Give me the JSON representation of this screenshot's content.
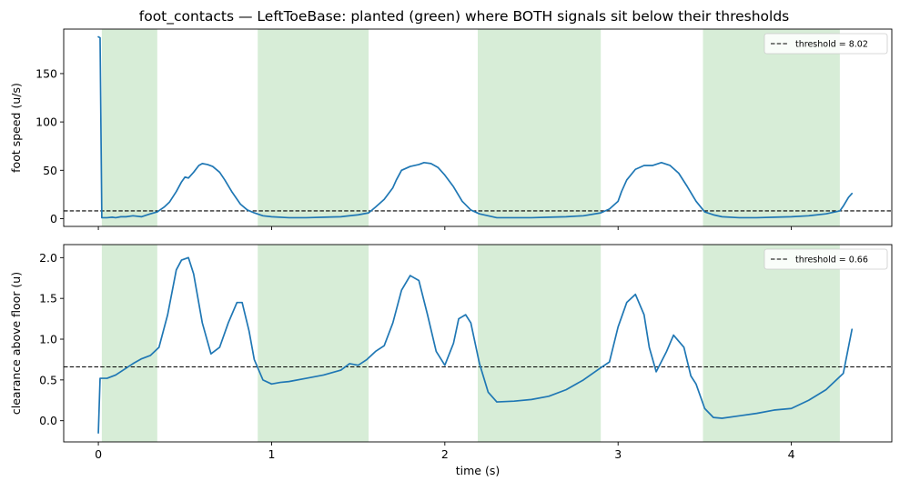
{
  "figure": {
    "title": "foot_contacts — LeftToeBase: planted (green) where BOTH signals sit below their thresholds"
  },
  "colors": {
    "line": "#1f77b4",
    "threshold": "#000000",
    "planted_fill": "#2ca02c",
    "axes": "#000000"
  },
  "chart_data": [
    {
      "type": "line",
      "name": "speed",
      "title": "foot_contacts — LeftToeBase: planted (green) where BOTH signals sit below their thresholds",
      "xlabel": "",
      "ylabel": "foot speed (u/s)",
      "xlim": [
        -0.2,
        4.58
      ],
      "ylim": [
        -8,
        196
      ],
      "xticks": [
        0,
        1,
        2,
        3,
        4
      ],
      "xtick_labels_visible": false,
      "yticks": [
        0,
        50,
        100,
        150
      ],
      "grid": false,
      "threshold": 8.02,
      "legend": {
        "label": "threshold = 8.02",
        "position": "upper right"
      },
      "planted_intervals": [
        [
          0.02,
          0.34
        ],
        [
          0.92,
          1.56
        ],
        [
          2.19,
          2.9
        ],
        [
          3.49,
          4.28
        ]
      ],
      "series": [
        {
          "x": [
            0.0,
            0.01,
            0.02,
            0.05,
            0.08,
            0.1,
            0.13,
            0.16,
            0.2,
            0.25,
            0.3,
            0.34,
            0.38,
            0.41,
            0.45,
            0.48,
            0.5,
            0.52,
            0.55,
            0.58,
            0.6,
            0.63,
            0.66,
            0.7,
            0.73,
            0.77,
            0.82,
            0.86,
            0.9,
            0.95,
            1.0,
            1.1,
            1.2,
            1.3,
            1.4,
            1.5,
            1.56,
            1.6,
            1.65,
            1.7,
            1.72,
            1.75,
            1.8,
            1.85,
            1.88,
            1.92,
            1.96,
            2.0,
            2.05,
            2.1,
            2.15,
            2.2,
            2.25,
            2.3,
            2.4,
            2.5,
            2.6,
            2.7,
            2.8,
            2.9,
            2.95,
            3.0,
            3.02,
            3.05,
            3.1,
            3.15,
            3.2,
            3.25,
            3.3,
            3.35,
            3.4,
            3.45,
            3.5,
            3.55,
            3.6,
            3.7,
            3.8,
            3.9,
            4.0,
            4.1,
            4.2,
            4.28,
            4.3,
            4.33,
            4.35
          ],
          "y": [
            188,
            187,
            1,
            1,
            1.5,
            1,
            2,
            2,
            3,
            2,
            5,
            7,
            12,
            17,
            28,
            38,
            43,
            42,
            48,
            55,
            57,
            56,
            54,
            48,
            40,
            28,
            15,
            9,
            6,
            3,
            2,
            1,
            1,
            1.5,
            2,
            4,
            6,
            12,
            20,
            32,
            40,
            50,
            54,
            56,
            58,
            57,
            53,
            45,
            33,
            18,
            9,
            5,
            3,
            1,
            1,
            1,
            1.5,
            2,
            3,
            6,
            10,
            18,
            28,
            40,
            51,
            55,
            55,
            58,
            55,
            47,
            33,
            18,
            7,
            4,
            2,
            1,
            1,
            1.5,
            2,
            3,
            5,
            8,
            13,
            22,
            26
          ]
        }
      ]
    },
    {
      "type": "line",
      "name": "clearance",
      "xlabel": "time (s)",
      "ylabel": "clearance above floor (u)",
      "xlim": [
        -0.2,
        4.58
      ],
      "ylim": [
        -0.26,
        2.16
      ],
      "xticks": [
        0,
        1,
        2,
        3,
        4
      ],
      "yticks": [
        0.0,
        0.5,
        1.0,
        1.5,
        2.0
      ],
      "grid": false,
      "threshold": 0.66,
      "legend": {
        "label": "threshold = 0.66",
        "position": "upper right"
      },
      "planted_intervals": [
        [
          0.02,
          0.34
        ],
        [
          0.92,
          1.56
        ],
        [
          2.19,
          2.9
        ],
        [
          3.49,
          4.28
        ]
      ],
      "series": [
        {
          "x": [
            0.0,
            0.01,
            0.05,
            0.1,
            0.15,
            0.2,
            0.25,
            0.3,
            0.35,
            0.4,
            0.45,
            0.48,
            0.52,
            0.55,
            0.6,
            0.65,
            0.7,
            0.75,
            0.8,
            0.83,
            0.87,
            0.9,
            0.95,
            1.0,
            1.05,
            1.1,
            1.2,
            1.3,
            1.4,
            1.45,
            1.5,
            1.55,
            1.6,
            1.65,
            1.7,
            1.75,
            1.8,
            1.85,
            1.9,
            1.95,
            2.0,
            2.05,
            2.08,
            2.12,
            2.15,
            2.2,
            2.25,
            2.3,
            2.4,
            2.5,
            2.6,
            2.7,
            2.8,
            2.9,
            2.95,
            3.0,
            3.05,
            3.1,
            3.15,
            3.18,
            3.22,
            3.28,
            3.32,
            3.38,
            3.42,
            3.45,
            3.5,
            3.55,
            3.6,
            3.7,
            3.8,
            3.9,
            4.0,
            4.1,
            4.2,
            4.25,
            4.3,
            4.35
          ],
          "y": [
            -0.15,
            0.52,
            0.52,
            0.56,
            0.63,
            0.7,
            0.76,
            0.8,
            0.9,
            1.3,
            1.85,
            1.97,
            2.0,
            1.8,
            1.2,
            0.82,
            0.9,
            1.2,
            1.45,
            1.45,
            1.1,
            0.75,
            0.5,
            0.45,
            0.47,
            0.48,
            0.52,
            0.56,
            0.62,
            0.7,
            0.68,
            0.75,
            0.85,
            0.92,
            1.2,
            1.6,
            1.78,
            1.72,
            1.3,
            0.85,
            0.68,
            0.95,
            1.25,
            1.3,
            1.2,
            0.7,
            0.35,
            0.23,
            0.24,
            0.26,
            0.3,
            0.38,
            0.5,
            0.65,
            0.72,
            1.15,
            1.45,
            1.55,
            1.3,
            0.9,
            0.6,
            0.85,
            1.05,
            0.9,
            0.55,
            0.45,
            0.15,
            0.04,
            0.03,
            0.06,
            0.09,
            0.13,
            0.15,
            0.25,
            0.38,
            0.48,
            0.58,
            1.12
          ]
        }
      ]
    }
  ]
}
